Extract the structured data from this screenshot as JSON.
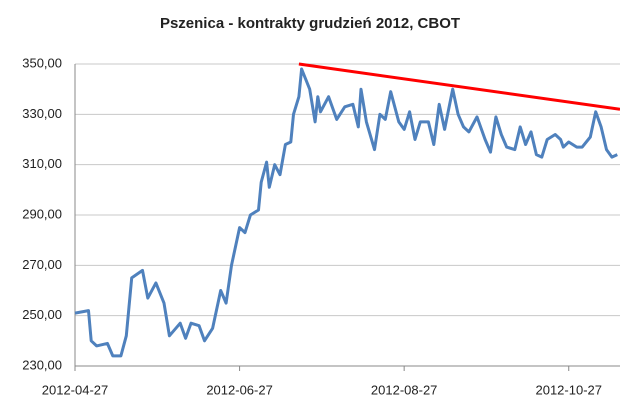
{
  "chart_data": {
    "type": "line",
    "title": "Pszenica - kontrakty grudzień 2012, CBOT",
    "x": [
      "2012-04-27",
      "2012-05-02",
      "2012-05-03",
      "2012-05-05",
      "2012-05-09",
      "2012-05-11",
      "2012-05-14",
      "2012-05-16",
      "2012-05-18",
      "2012-05-22",
      "2012-05-24",
      "2012-05-27",
      "2012-05-30",
      "2012-06-01",
      "2012-06-05",
      "2012-06-07",
      "2012-06-09",
      "2012-06-12",
      "2012-06-14",
      "2012-06-17",
      "2012-06-20",
      "2012-06-22",
      "2012-06-24",
      "2012-06-27",
      "2012-06-29",
      "2012-07-01",
      "2012-07-04",
      "2012-07-05",
      "2012-07-07",
      "2012-07-08",
      "2012-07-10",
      "2012-07-12",
      "2012-07-14",
      "2012-07-16",
      "2012-07-17",
      "2012-07-19",
      "2012-07-20",
      "2012-07-23",
      "2012-07-25",
      "2012-07-26",
      "2012-07-27",
      "2012-07-30",
      "2012-08-02",
      "2012-08-05",
      "2012-08-08",
      "2012-08-10",
      "2012-08-11",
      "2012-08-13",
      "2012-08-16",
      "2012-08-18",
      "2012-08-20",
      "2012-08-22",
      "2012-08-25",
      "2012-08-27",
      "2012-08-29",
      "2012-08-31",
      "2012-09-02",
      "2012-09-05",
      "2012-09-07",
      "2012-09-09",
      "2012-09-11",
      "2012-09-14",
      "2012-09-16",
      "2012-09-18",
      "2012-09-20",
      "2012-09-23",
      "2012-09-26",
      "2012-09-28",
      "2012-09-30",
      "2012-10-02",
      "2012-10-04",
      "2012-10-07",
      "2012-10-09",
      "2012-10-11",
      "2012-10-13",
      "2012-10-15",
      "2012-10-17",
      "2012-10-19",
      "2012-10-22",
      "2012-10-24",
      "2012-10-25",
      "2012-10-27",
      "2012-10-30",
      "2012-11-01",
      "2012-11-04",
      "2012-11-06",
      "2012-11-08",
      "2012-11-10",
      "2012-11-12",
      "2012-11-14"
    ],
    "values": [
      251,
      252,
      240,
      238,
      239,
      234,
      234,
      242,
      265,
      268,
      257,
      263,
      255,
      242,
      247,
      241,
      247,
      246,
      240,
      245,
      260,
      255,
      270,
      285,
      283,
      290,
      292,
      303,
      311,
      301,
      310,
      306,
      318,
      319,
      330,
      337,
      348,
      340,
      327,
      337,
      331,
      337,
      328,
      333,
      334,
      325,
      340,
      327,
      316,
      330,
      328,
      339,
      327,
      324,
      331,
      320,
      327,
      327,
      318,
      334,
      324,
      340,
      330,
      325,
      323,
      329,
      320,
      315,
      329,
      322,
      317,
      316,
      325,
      318,
      323,
      314,
      313,
      320,
      322,
      320,
      317,
      319,
      317,
      317,
      321,
      331,
      325,
      316,
      313,
      314
    ],
    "color": "#4f81bd",
    "trend_line": {
      "x": [
        "2012-07-19",
        "2012-11-15"
      ],
      "values": [
        350,
        332
      ],
      "color": "#ff0000"
    },
    "xlim": [
      "2012-04-27",
      "2012-11-15"
    ],
    "xticks": [
      "2012-04-27",
      "2012-06-27",
      "2012-08-27",
      "2012-10-27"
    ],
    "ylim": [
      230,
      350
    ],
    "yticks": [
      {
        "value": 230,
        "label": "230,00"
      },
      {
        "value": 250,
        "label": "250,00"
      },
      {
        "value": 270,
        "label": "270,00"
      },
      {
        "value": 290,
        "label": "290,00"
      },
      {
        "value": 310,
        "label": "310,00"
      },
      {
        "value": 330,
        "label": "330,00"
      },
      {
        "value": 350,
        "label": "350,00"
      }
    ],
    "grid": true
  }
}
